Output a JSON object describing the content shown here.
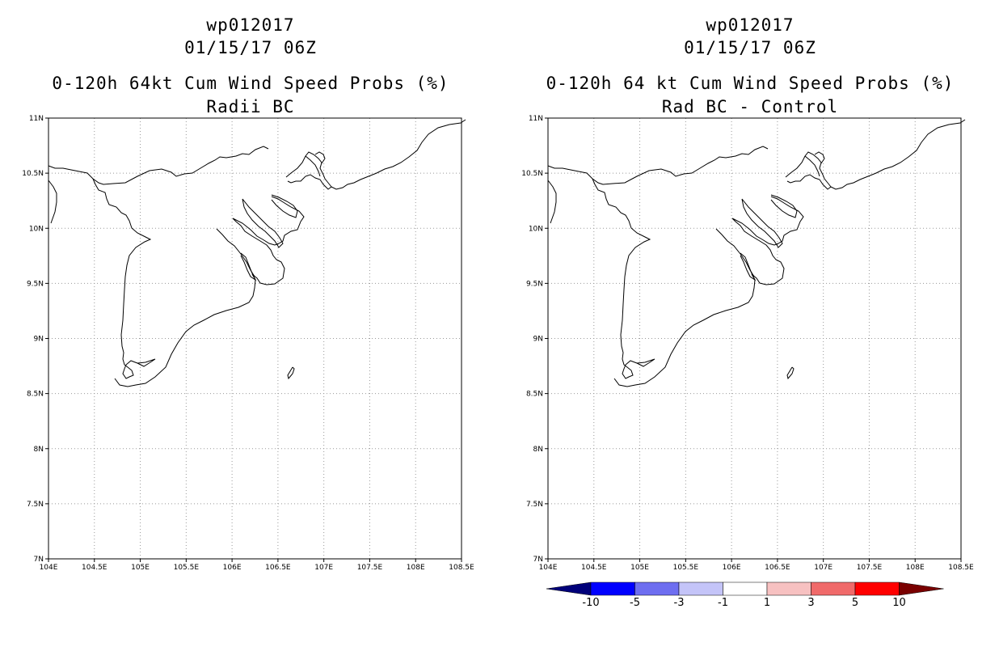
{
  "panels": [
    {
      "storm_id": "wp012017",
      "datetime": "01/15/17 06Z",
      "product": "0-120h 64kt Cum Wind Speed Probs (%)",
      "subtitle": "Radii BC"
    },
    {
      "storm_id": "wp012017",
      "datetime": "01/15/17 06Z",
      "product": "0-120h 64 kt Cum Wind Speed Probs (%)",
      "subtitle": "Rad BC - Control"
    }
  ],
  "map": {
    "lon_range": [
      104,
      108.5
    ],
    "lat_range": [
      7,
      11
    ],
    "lon_ticks": [
      "104E",
      "104.5E",
      "105E",
      "105.5E",
      "106E",
      "106.5E",
      "107E",
      "107.5E",
      "108E",
      "108.5E"
    ],
    "lat_ticks": [
      "7N",
      "7.5N",
      "8N",
      "8.5N",
      "9N",
      "9.5N",
      "10N",
      "10.5N",
      "11N"
    ],
    "gridlines": "dotted"
  },
  "colorbar": {
    "labels": [
      "-10",
      "-5",
      "-3",
      "-1",
      "1",
      "3",
      "5",
      "10"
    ],
    "colors": [
      "#00007a",
      "#0000ff",
      "#6e6ef0",
      "#c4c4f8",
      "#ffffff",
      "#f7c1c1",
      "#f06a6a",
      "#ff0000",
      "#7a0000"
    ]
  }
}
